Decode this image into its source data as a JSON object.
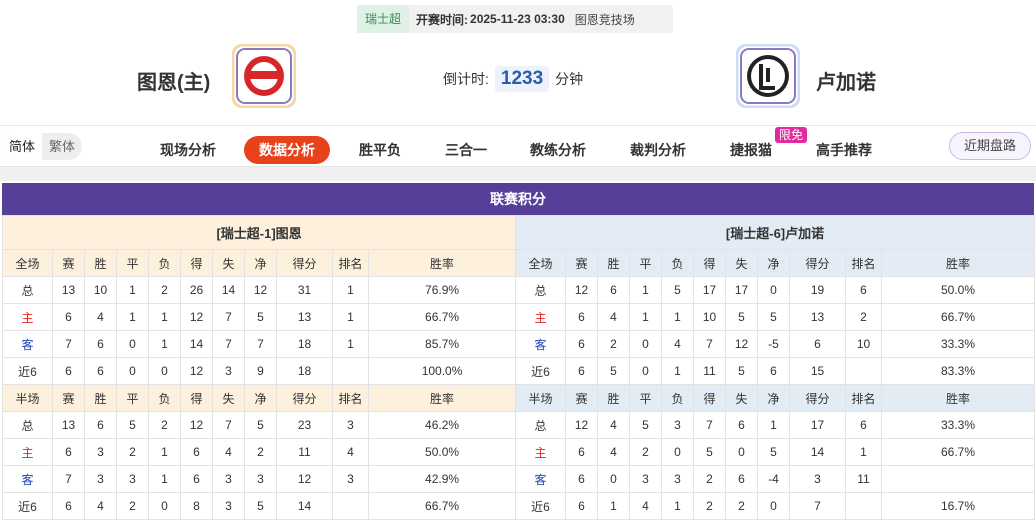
{
  "header": {
    "league": "瑞士超",
    "kickoff_label": "开赛时间:",
    "kickoff_time": "2025-11-23 03:30",
    "venue": "图恩竞技场"
  },
  "match": {
    "home": "图恩(主)",
    "away": "卢加诺",
    "countdown_label": "倒计时:",
    "countdown_value": 1233,
    "countdown_unit": "分钟"
  },
  "nav": {
    "languages": [
      "简体",
      "繁体"
    ],
    "tabs": [
      "现场分析",
      "数据分析",
      "胜平负",
      "三合一",
      "教练分析",
      "裁判分析",
      "捷报猫",
      "高手推荐"
    ],
    "badge": "限免",
    "right_button": "近期盘路"
  },
  "section_title": "联赛积分",
  "tables": [
    {
      "title": "[瑞士超-1]图恩",
      "full": {
        "header": [
          "全场",
          "赛",
          "胜",
          "平",
          "负",
          "得",
          "失",
          "净",
          "得分",
          "排名",
          "胜率"
        ],
        "rows": [
          [
            "总",
            13,
            10,
            1,
            2,
            26,
            14,
            12,
            31,
            1,
            "76.9%"
          ],
          [
            "主",
            6,
            4,
            1,
            1,
            12,
            7,
            5,
            13,
            1,
            "66.7%"
          ],
          [
            "客",
            7,
            6,
            0,
            1,
            14,
            7,
            7,
            18,
            1,
            "85.7%"
          ],
          [
            "近6",
            6,
            6,
            0,
            0,
            12,
            3,
            9,
            18,
            null,
            "100.0%"
          ]
        ]
      },
      "half": {
        "header": [
          "半场",
          "赛",
          "胜",
          "平",
          "负",
          "得",
          "失",
          "净",
          "得分",
          "排名",
          "胜率"
        ],
        "rows": [
          [
            "总",
            13,
            6,
            5,
            2,
            12,
            7,
            5,
            23,
            3,
            "46.2%"
          ],
          [
            "主",
            6,
            3,
            2,
            1,
            6,
            4,
            2,
            11,
            4,
            "50.0%"
          ],
          [
            "客",
            7,
            3,
            3,
            1,
            6,
            3,
            3,
            12,
            3,
            "42.9%"
          ],
          [
            "近6",
            6,
            4,
            2,
            0,
            8,
            3,
            5,
            14,
            null,
            "66.7%"
          ]
        ]
      }
    },
    {
      "title": "[瑞士超-6]卢加诺",
      "full": {
        "header": [
          "全场",
          "赛",
          "胜",
          "平",
          "负",
          "得",
          "失",
          "净",
          "得分",
          "排名",
          "胜率"
        ],
        "rows": [
          [
            "总",
            12,
            6,
            1,
            5,
            17,
            17,
            0,
            19,
            6,
            "50.0%"
          ],
          [
            "主",
            6,
            4,
            1,
            1,
            10,
            5,
            5,
            13,
            2,
            "66.7%"
          ],
          [
            "客",
            6,
            2,
            0,
            4,
            7,
            12,
            -5,
            6,
            10,
            "33.3%"
          ],
          [
            "近6",
            6,
            5,
            0,
            1,
            11,
            5,
            6,
            15,
            null,
            "83.3%"
          ]
        ]
      },
      "half": {
        "header": [
          "半场",
          "赛",
          "胜",
          "平",
          "负",
          "得",
          "失",
          "净",
          "得分",
          "排名",
          "胜率"
        ],
        "rows": [
          [
            "总",
            12,
            4,
            5,
            3,
            7,
            6,
            1,
            17,
            6,
            "33.3%"
          ],
          [
            "主",
            6,
            4,
            2,
            0,
            5,
            0,
            5,
            14,
            1,
            "66.7%"
          ],
          [
            "客",
            6,
            0,
            3,
            3,
            2,
            6,
            -4,
            3,
            11,
            null
          ],
          [
            "近6",
            6,
            1,
            4,
            1,
            2,
            2,
            0,
            7,
            null,
            "16.7%"
          ]
        ]
      }
    }
  ]
}
